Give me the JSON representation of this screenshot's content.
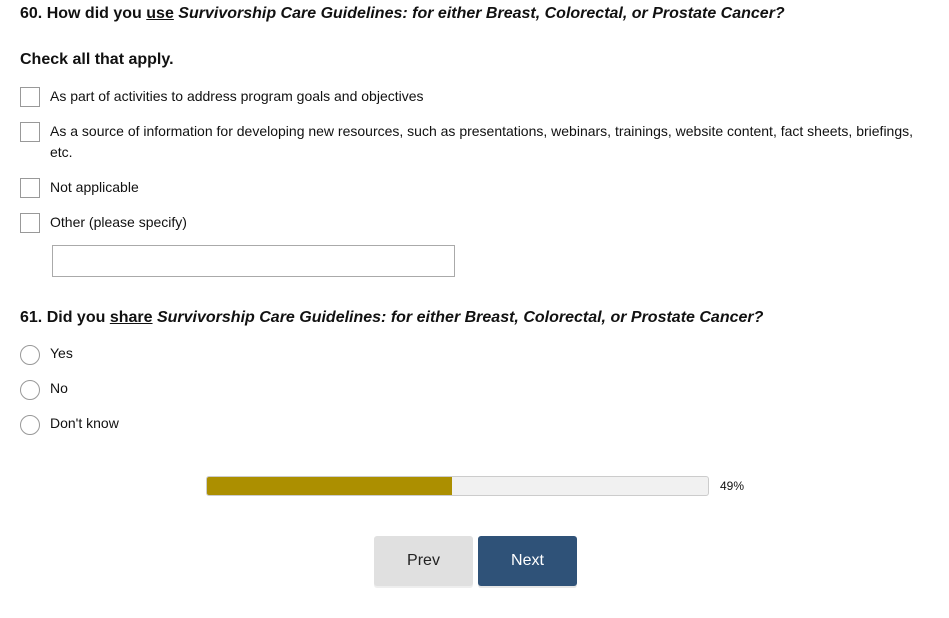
{
  "q60": {
    "number": "60.",
    "prefix": "How did you",
    "emphasis": "use",
    "title": "Survivorship Care Guidelines: for either Breast, Colorectal, or Prostate Cancer?",
    "hint": "Check all that apply.",
    "options": [
      {
        "label": "As part of activities to address program goals and objectives",
        "checked": false
      },
      {
        "label": "As a source of information for developing new resources, such as presentations, webinars, trainings, website content, fact sheets, briefings,",
        "label_cont": "etc.",
        "checked": false
      },
      {
        "label": "Not applicable",
        "checked": false
      },
      {
        "label": "Other (please specify)",
        "checked": false
      }
    ],
    "other_value": "",
    "other_placeholder": ""
  },
  "q61": {
    "number": "61.",
    "prefix": "Did you",
    "emphasis": "share",
    "title": "Survivorship Care Guidelines: for either Breast, Colorectal, or Prostate Cancer?",
    "options": [
      {
        "label": "Yes",
        "selected": false
      },
      {
        "label": "No",
        "selected": false
      },
      {
        "label": "Don't know",
        "selected": false
      }
    ]
  },
  "progress": {
    "percent": 49,
    "label": "49%",
    "fill_color": "#ac8f00"
  },
  "nav": {
    "prev_label": "Prev",
    "next_label": "Next",
    "next_color": "#2f5278"
  }
}
